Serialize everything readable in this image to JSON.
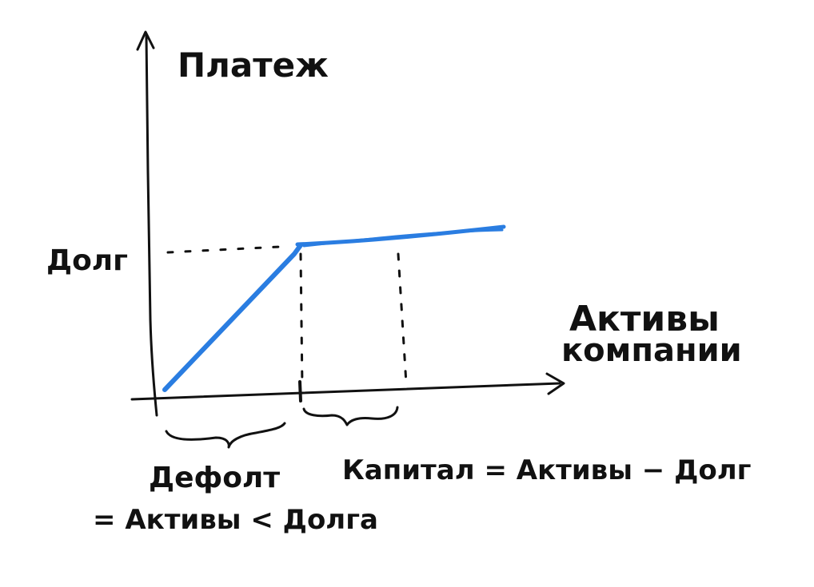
{
  "labels": {
    "y_axis": "Платеж",
    "x_axis_line1": "Активы",
    "x_axis_line2": "компании",
    "debt": "Долг",
    "default_line1": "Дефолт",
    "default_line2": "= Активы < Долга",
    "equity": "Капитал = Активы − Долг"
  },
  "colors": {
    "ink": "#111111",
    "payoff_line": "#2a7de1"
  }
}
